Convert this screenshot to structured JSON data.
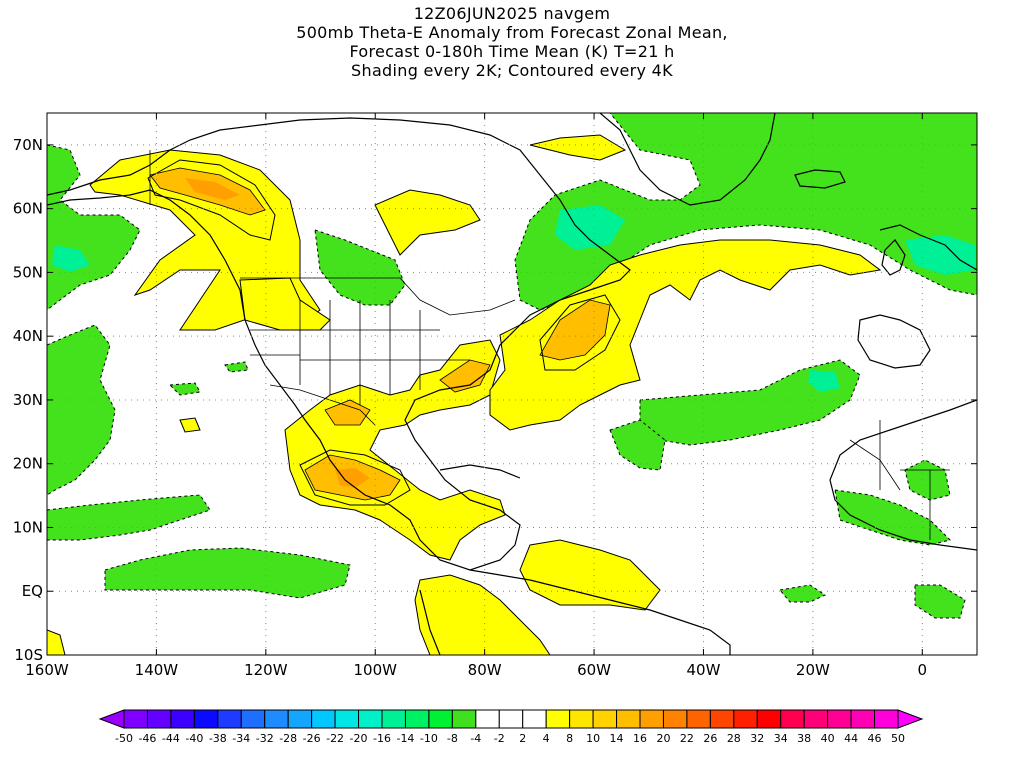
{
  "title": {
    "lines": [
      "12Z06JUN2025 navgem",
      "500mb Theta-E Anomaly from Forecast Zonal Mean,",
      "Forecast 0-180h Time Mean (K) T=21 h",
      "Shading every 2K; Contoured every 4K"
    ]
  },
  "map": {
    "lon_range": [
      -160,
      10
    ],
    "lat_range": [
      -10,
      75
    ],
    "lon_ticks": [
      {
        "lon": -160,
        "label": "160W"
      },
      {
        "lon": -140,
        "label": "140W"
      },
      {
        "lon": -120,
        "label": "120W"
      },
      {
        "lon": -100,
        "label": "100W"
      },
      {
        "lon": -80,
        "label": "80W"
      },
      {
        "lon": -60,
        "label": "60W"
      },
      {
        "lon": -40,
        "label": "40W"
      },
      {
        "lon": -20,
        "label": "20W"
      },
      {
        "lon": 0,
        "label": "0"
      }
    ],
    "lat_ticks": [
      {
        "lat": 70,
        "label": "70N"
      },
      {
        "lat": 60,
        "label": "60N"
      },
      {
        "lat": 50,
        "label": "50N"
      },
      {
        "lat": 40,
        "label": "40N"
      },
      {
        "lat": 30,
        "label": "30N"
      },
      {
        "lat": 20,
        "label": "20N"
      },
      {
        "lat": 10,
        "label": "10N"
      },
      {
        "lat": 0,
        "label": "EQ"
      },
      {
        "lat": -10,
        "label": "10S"
      }
    ],
    "grid": true
  },
  "colorbar": {
    "labels": [
      "-50",
      "-46",
      "-44",
      "-40",
      "-38",
      "-34",
      "-32",
      "-28",
      "-26",
      "-22",
      "-20",
      "-16",
      "-14",
      "-10",
      "-8",
      "-4",
      "-2",
      "2",
      "4",
      "8",
      "10",
      "14",
      "16",
      "20",
      "22",
      "26",
      "28",
      "32",
      "34",
      "38",
      "40",
      "44",
      "46",
      "50"
    ],
    "colors": [
      "#9a00ff",
      "#7f00ff",
      "#6400ff",
      "#3c00ff",
      "#0a0aff",
      "#1e3cff",
      "#1e6eff",
      "#1e8cff",
      "#14a5ff",
      "#00c8ff",
      "#00e6e6",
      "#00f0c8",
      "#00f096",
      "#00f064",
      "#00f032",
      "#40e01e",
      "#ffffff",
      "#ffffff",
      "#ffffff",
      "#ffff00",
      "#ffe600",
      "#ffd200",
      "#ffbe00",
      "#ffa000",
      "#ff8200",
      "#ff6400",
      "#ff4600",
      "#ff2000",
      "#ff0000",
      "#ff0050",
      "#ff0078",
      "#ff0096",
      "#ff00b4",
      "#ff00dc",
      "#ff00ff"
    ]
  }
}
